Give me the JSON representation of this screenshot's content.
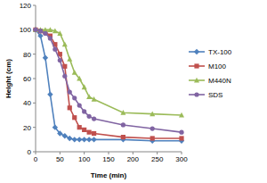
{
  "chart_data": {
    "type": "line",
    "x_label": "Time (min)",
    "y_label": "Height (cm)",
    "x": [
      0,
      10,
      20,
      30,
      40,
      50,
      60,
      70,
      80,
      90,
      100,
      110,
      120,
      180,
      240,
      300
    ],
    "xlim": [
      0,
      300
    ],
    "xticks": [
      0,
      50,
      100,
      150,
      200,
      250,
      300
    ],
    "ylim": [
      0,
      120
    ],
    "yticks": [
      0,
      20,
      40,
      60,
      80,
      100,
      120
    ],
    "grid": false,
    "legend": "right",
    "series": [
      {
        "name": "TX-100",
        "color": "#4f81bd",
        "marker": "diamond",
        "line_style": "solid",
        "values": [
          100,
          95,
          77,
          47,
          20,
          15,
          13,
          11,
          10,
          10,
          10,
          10,
          10,
          10,
          9,
          9
        ]
      },
      {
        "name": "M100",
        "color": "#c0504d",
        "marker": "square",
        "line_style": "solid",
        "values": [
          100,
          99,
          98,
          95,
          88,
          80,
          70,
          36,
          28,
          20,
          18,
          16,
          15,
          12,
          11,
          11
        ]
      },
      {
        "name": "M440N",
        "color": "#9bbb59",
        "marker": "triangle",
        "line_style": "solid",
        "values": [
          100,
          100,
          100,
          100,
          99,
          97,
          88,
          76,
          65,
          60,
          53,
          45,
          43,
          32,
          31,
          30
        ]
      },
      {
        "name": "SDS",
        "color": "#8064a2",
        "marker": "circle",
        "line_style": "solid",
        "values": [
          100,
          99,
          97,
          93,
          84,
          75,
          62,
          49,
          44,
          38,
          33,
          29,
          27,
          22,
          19,
          16
        ]
      }
    ]
  }
}
